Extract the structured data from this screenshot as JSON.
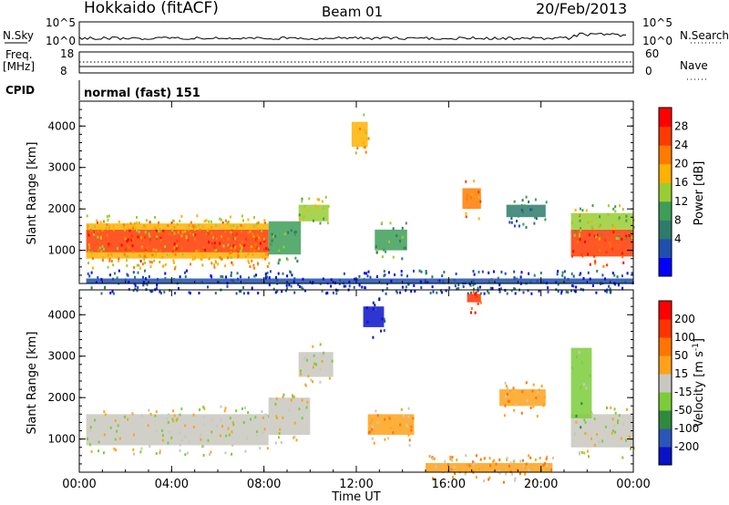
{
  "header": {
    "station": "Hokkaido (fitACF)",
    "beam": "Beam 01",
    "date": "20/Feb/2013"
  },
  "strips": {
    "nsky_label": "N.Sky",
    "nsky_ticks": [
      "10^5",
      "10^0"
    ],
    "nsearch_label": "N.Search",
    "nsearch_ticks": [
      "10^5",
      "10^0"
    ],
    "freq_label_1": "Freq.",
    "freq_label_2": "[MHz]",
    "freq_ticks": [
      "18",
      "8"
    ],
    "nave_label": "Nave",
    "nave_ticks": [
      "60",
      "0"
    ],
    "cpid_label": "CPID",
    "cpid_value": "normal (fast) 151"
  },
  "chart_data": [
    {
      "type": "heatmap",
      "panel": "power",
      "ylabel": "Slant Range [km]",
      "xlabel": "",
      "y_ticks": [
        1000,
        2000,
        3000,
        4000
      ],
      "ylim": [
        200,
        4600
      ],
      "colorbar_label": "Power [dB]",
      "colorbar_ticks": [
        "28",
        "24",
        "20",
        "16",
        "12",
        "8",
        "4"
      ],
      "colors": [
        "#0000ff",
        "#1f4fb0",
        "#2e7b6a",
        "#3e9d57",
        "#9acd32",
        "#ffb100",
        "#ff7b00",
        "#ff3a00",
        "#ff0000"
      ],
      "regions": [
        {
          "t0": 0.3,
          "t1": 8.2,
          "r0": 950,
          "r1": 1500,
          "level": 7
        },
        {
          "t0": 0.3,
          "t1": 8.2,
          "r0": 800,
          "r1": 950,
          "level": 5
        },
        {
          "t0": 0.3,
          "t1": 8.2,
          "r0": 1500,
          "r1": 1650,
          "level": 5
        },
        {
          "t0": 8.2,
          "t1": 9.6,
          "r0": 900,
          "r1": 1700,
          "level": 3
        },
        {
          "t0": 9.5,
          "t1": 10.8,
          "r0": 1700,
          "r1": 2100,
          "level": 4
        },
        {
          "t0": 12.8,
          "t1": 14.2,
          "r0": 1000,
          "r1": 1500,
          "level": 3
        },
        {
          "t0": 16.6,
          "t1": 17.4,
          "r0": 2000,
          "r1": 2500,
          "level": 6
        },
        {
          "t0": 18.5,
          "t1": 20.2,
          "r0": 1800,
          "r1": 2100,
          "level": 2
        },
        {
          "t0": 11.8,
          "t1": 12.5,
          "r0": 3500,
          "r1": 4100,
          "level": 5
        },
        {
          "t0": 21.3,
          "t1": 24,
          "r0": 850,
          "r1": 1500,
          "level": 7
        },
        {
          "t0": 21.3,
          "t1": 24,
          "r0": 1500,
          "r1": 1900,
          "level": 4
        },
        {
          "t0": 0.3,
          "t1": 24,
          "r0": 200,
          "r1": 320,
          "level": 1
        }
      ]
    },
    {
      "type": "heatmap",
      "panel": "velocity",
      "ylabel": "Slant Range [km]",
      "xlabel": "Time UT",
      "x_ticks": [
        "00:00",
        "04:00",
        "08:00",
        "12:00",
        "16:00",
        "20:00",
        "00:00"
      ],
      "y_ticks": [
        1000,
        2000,
        3000,
        4000
      ],
      "ylim": [
        200,
        4600
      ],
      "colorbar_label": "Velocity [m s^-1]",
      "colorbar_ticks": [
        "200",
        "100",
        "50",
        "15",
        "-15",
        "-50",
        "-100",
        "-200"
      ],
      "colors": [
        "#0a12c8",
        "#2b55b8",
        "#2f8a3e",
        "#7ccc3a",
        "#c8c8c0",
        "#ffa21a",
        "#ff7500",
        "#ff3300",
        "#ff0000"
      ],
      "regions": [
        {
          "t0": 0.3,
          "t1": 8.2,
          "r0": 850,
          "r1": 1600,
          "level": 4
        },
        {
          "t0": 8.2,
          "t1": 10,
          "r0": 1100,
          "r1": 2000,
          "level": 4
        },
        {
          "t0": 9.5,
          "t1": 11,
          "r0": 2500,
          "r1": 3100,
          "level": 4
        },
        {
          "t0": 12.5,
          "t1": 14.5,
          "r0": 1100,
          "r1": 1600,
          "level": 5
        },
        {
          "t0": 18.2,
          "t1": 20.2,
          "r0": 1800,
          "r1": 2200,
          "level": 5
        },
        {
          "t0": 12.3,
          "t1": 13.2,
          "r0": 3700,
          "r1": 4200,
          "level": 0
        },
        {
          "t0": 16.8,
          "t1": 17.4,
          "r0": 4300,
          "r1": 4500,
          "level": 7
        },
        {
          "t0": 21.3,
          "t1": 24,
          "r0": 800,
          "r1": 1600,
          "level": 4
        },
        {
          "t0": 21.3,
          "t1": 22.2,
          "r0": 1500,
          "r1": 3200,
          "level": 3
        },
        {
          "t0": 15,
          "t1": 20.5,
          "r0": 200,
          "r1": 420,
          "level": 5
        }
      ]
    }
  ]
}
